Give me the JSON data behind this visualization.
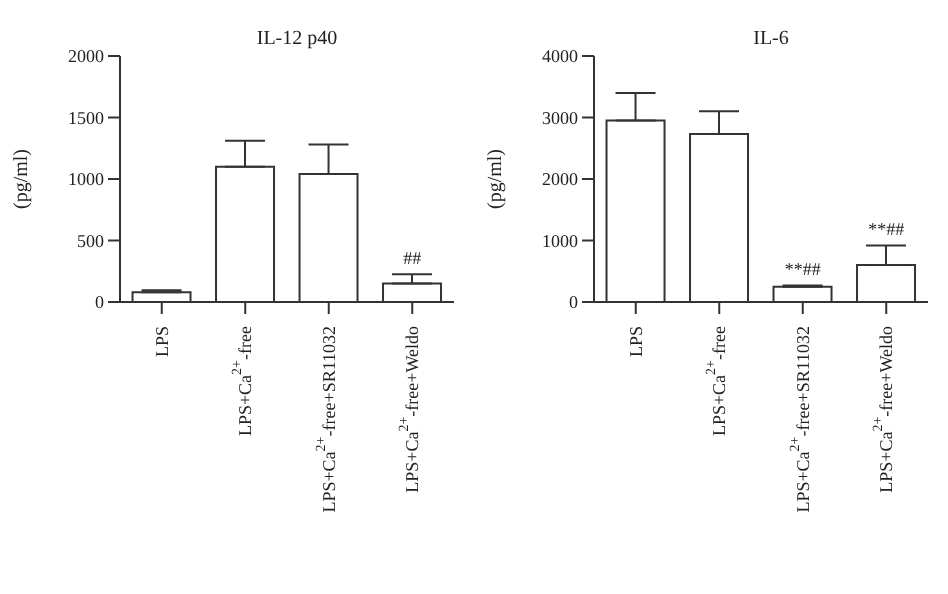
{
  "chart_data": [
    {
      "type": "bar",
      "title": "IL-12 p40",
      "ylabel": "(pg/ml)",
      "categories": [
        "LPS",
        "LPS+Ca$^{2+}$-free",
        "LPS+Ca$^{2+}$-free+SR11032",
        "LPS+Ca$^{2+}$-free+Weldo"
      ],
      "values": [
        80,
        1100,
        1040,
        150
      ],
      "errors": [
        [
          80,
          95
        ],
        [
          1100,
          1310
        ],
        [
          1040,
          1280
        ],
        [
          150,
          225
        ]
      ],
      "color": "#ffffff",
      "ylim": [
        0,
        2000
      ],
      "yticks": [
        0,
        500,
        1000,
        1500,
        2000
      ],
      "grid": false,
      "annotations": [
        {
          "text": "##",
          "x": "LPS+Ca$^{2+}$-free+Weldo",
          "y": 225
        }
      ]
    },
    {
      "type": "bar",
      "title": "IL-6",
      "ylabel": "(pg/ml)",
      "categories": [
        "LPS",
        "LPS+Ca$^{2+}$-free",
        "LPS+Ca$^{2+}$-free+SR11032",
        "LPS+Ca$^{2+}$-free+Weldo"
      ],
      "values": [
        2950,
        2730,
        250,
        600
      ],
      "errors": [
        [
          2950,
          3400
        ],
        [
          2730,
          3100
        ],
        [
          250,
          270
        ],
        [
          600,
          920
        ]
      ],
      "color": "#ffffff",
      "ylim": [
        0,
        4000
      ],
      "yticks": [
        0,
        1000,
        2000,
        3000,
        4000
      ],
      "grid": false,
      "annotations": [
        {
          "text": "**##",
          "x": "LPS+Ca$^{2+}$-free+SR11032",
          "y": 270
        },
        {
          "text": "**##",
          "x": "LPS+Ca$^{2+}$-free+Weldo",
          "y": 920
        }
      ]
    }
  ]
}
